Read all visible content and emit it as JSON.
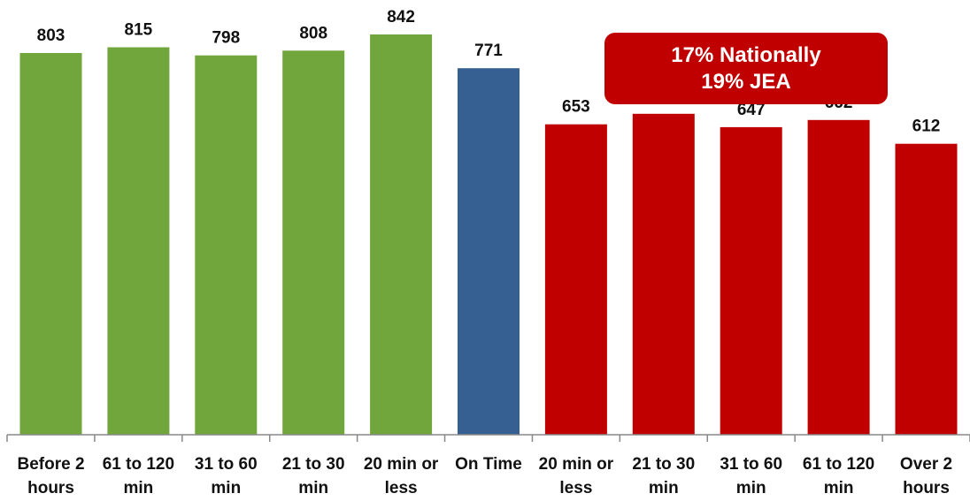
{
  "chart_data": {
    "type": "bar",
    "title": "",
    "xlabel": "",
    "ylabel": "",
    "ylim": [
      0,
      860
    ],
    "grid": false,
    "categories": [
      [
        "Before 2",
        "hours"
      ],
      [
        "61 to 120",
        "min"
      ],
      [
        "31 to 60",
        "min"
      ],
      [
        "21 to 30",
        "min"
      ],
      [
        "20 min or",
        "less"
      ],
      [
        "On Time"
      ],
      [
        "20 min or",
        "less"
      ],
      [
        "21 to 30",
        "min"
      ],
      [
        "31 to 60",
        "min"
      ],
      [
        "61 to 120",
        "min"
      ],
      [
        "Over 2",
        "hours"
      ]
    ],
    "values": [
      803,
      815,
      798,
      808,
      842,
      771,
      653,
      675,
      647,
      662,
      612
    ],
    "bar_colors": [
      "#70a63c",
      "#70a63c",
      "#70a63c",
      "#70a63c",
      "#70a63c",
      "#366092",
      "#c00000",
      "#c00000",
      "#c00000",
      "#c00000",
      "#c00000"
    ],
    "annotation": {
      "line1": "17% Nationally",
      "line2": "19% JEA",
      "color": "#c00000"
    }
  },
  "colors": {
    "early": "#70a63c",
    "on_time": "#366092",
    "late": "#c00000",
    "axis": "#888888"
  }
}
